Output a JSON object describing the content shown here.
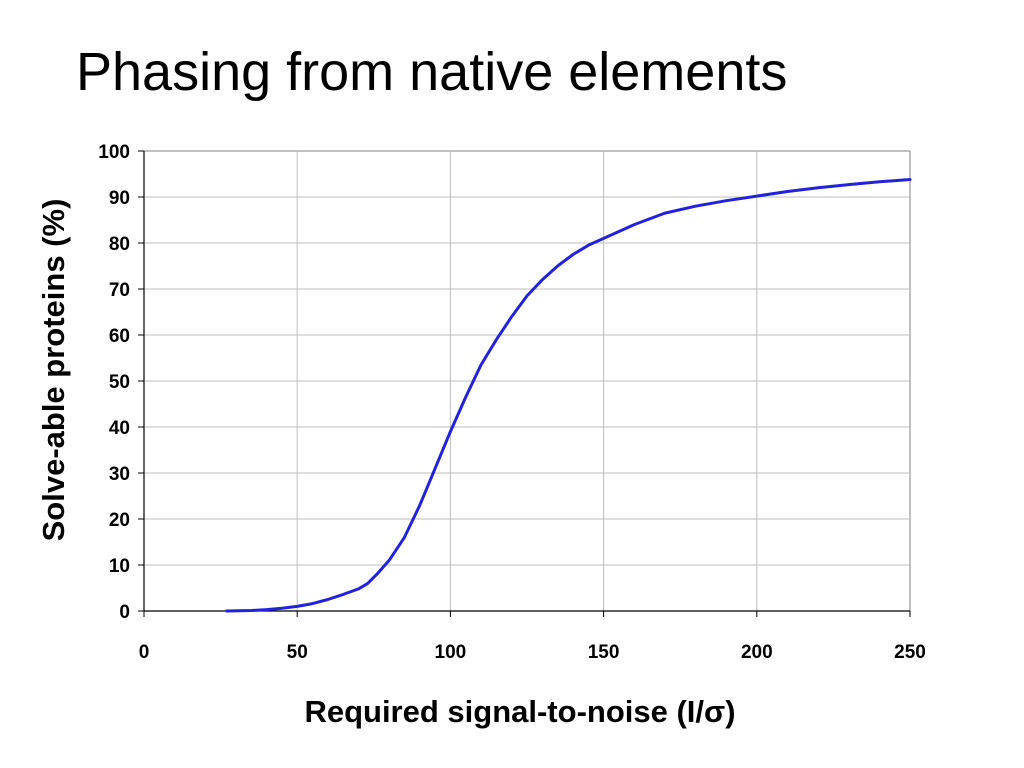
{
  "slide": {
    "title": "Phasing from native elements"
  },
  "chart_data": {
    "type": "line",
    "title": "",
    "xlabel": "Required signal-to-noise (I/σ)",
    "ylabel": "Solve-able proteins (%)",
    "xlim": [
      0,
      250
    ],
    "ylim": [
      0,
      100
    ],
    "x_ticks": [
      0,
      50,
      100,
      150,
      200,
      250
    ],
    "y_ticks": [
      0,
      10,
      20,
      30,
      40,
      50,
      60,
      70,
      80,
      90,
      100
    ],
    "grid": true,
    "legend": "none",
    "series": [
      {
        "color": "#2222dd",
        "points": [
          [
            27,
            0.0
          ],
          [
            35,
            0.1
          ],
          [
            40,
            0.3
          ],
          [
            45,
            0.6
          ],
          [
            50,
            1.0
          ],
          [
            55,
            1.6
          ],
          [
            60,
            2.5
          ],
          [
            65,
            3.6
          ],
          [
            70,
            4.8
          ],
          [
            73,
            6.0
          ],
          [
            76,
            8.0
          ],
          [
            80,
            11.0
          ],
          [
            85,
            16.0
          ],
          [
            90,
            23.0
          ],
          [
            95,
            31.0
          ],
          [
            100,
            39.0
          ],
          [
            105,
            46.5
          ],
          [
            110,
            53.5
          ],
          [
            115,
            59.0
          ],
          [
            120,
            64.0
          ],
          [
            125,
            68.5
          ],
          [
            130,
            72.0
          ],
          [
            135,
            75.0
          ],
          [
            140,
            77.5
          ],
          [
            145,
            79.5
          ],
          [
            150,
            81.0
          ],
          [
            160,
            84.0
          ],
          [
            170,
            86.5
          ],
          [
            180,
            88.0
          ],
          [
            190,
            89.2
          ],
          [
            200,
            90.2
          ],
          [
            210,
            91.2
          ],
          [
            220,
            92.0
          ],
          [
            230,
            92.7
          ],
          [
            240,
            93.3
          ],
          [
            250,
            93.8
          ]
        ]
      }
    ]
  }
}
